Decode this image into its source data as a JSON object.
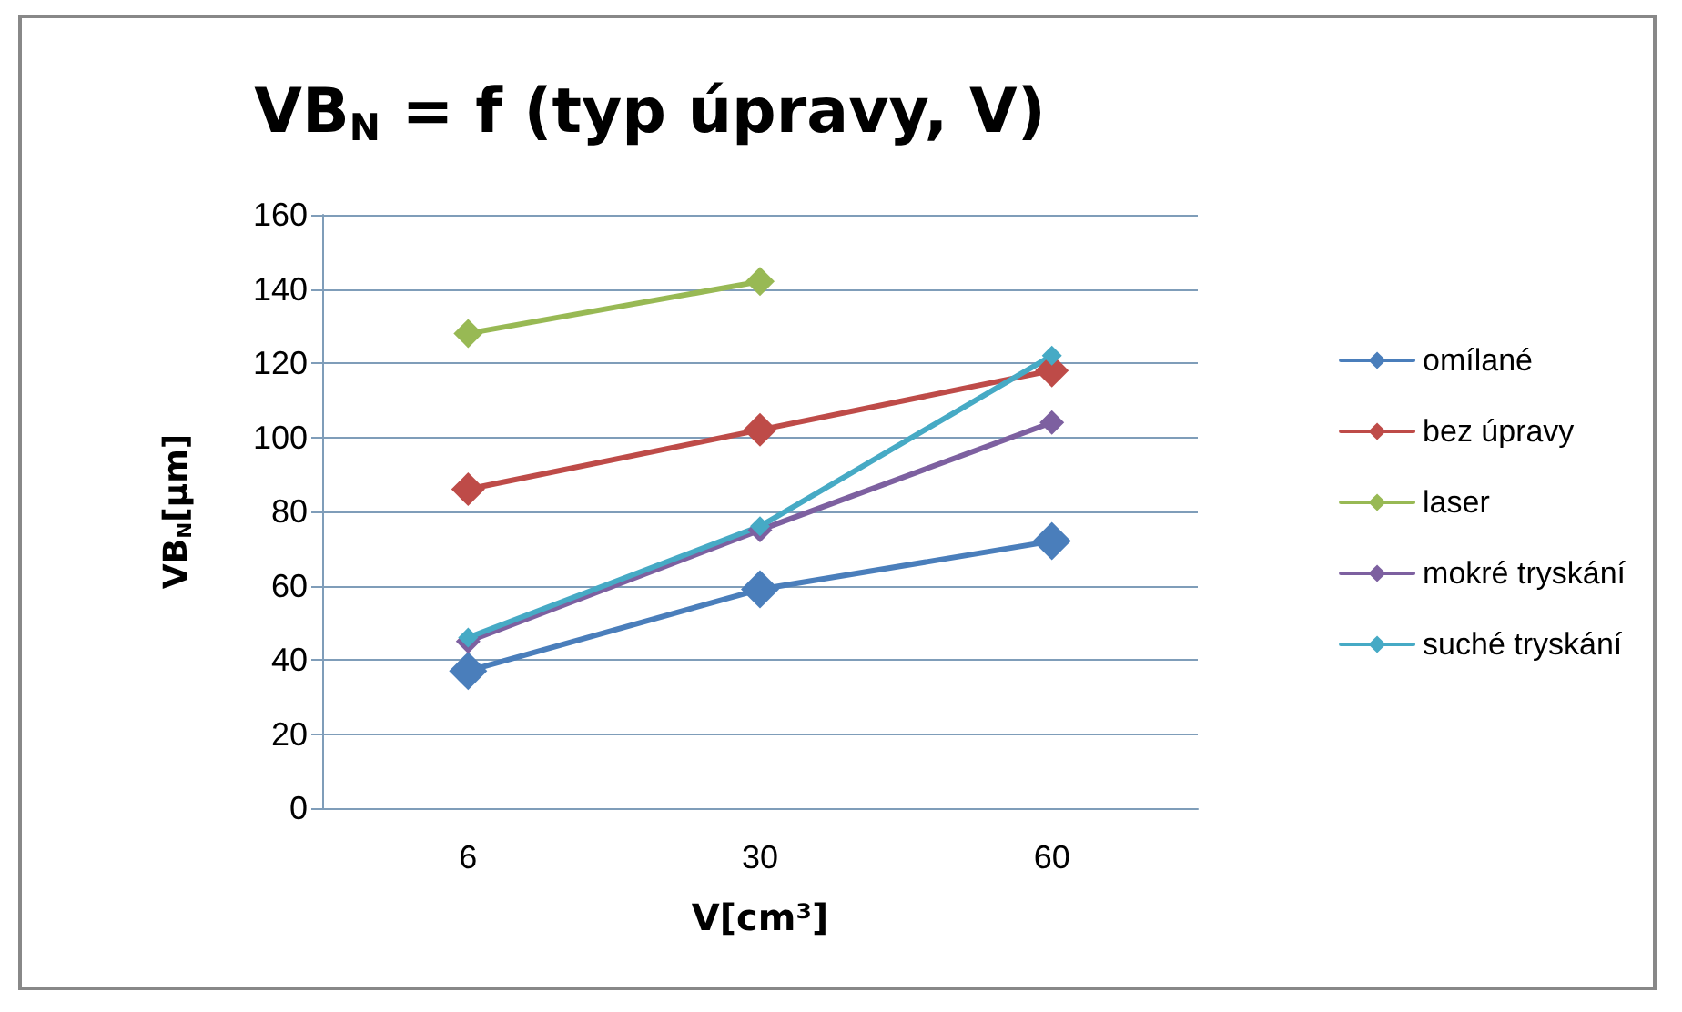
{
  "chart_data": {
    "type": "line",
    "title": "VB$_{N}$ = f (typ úpravy, V)",
    "xlabel": "V[cm³]",
    "ylabel": "VB$_{N}$[µm]",
    "categories": [
      "6",
      "30",
      "60"
    ],
    "series": [
      {
        "name": "omílané",
        "color": "#4a7ebb",
        "values": [
          37,
          59,
          72
        ]
      },
      {
        "name": "bez úpravy",
        "color": "#be4b48",
        "values": [
          86,
          102,
          118
        ]
      },
      {
        "name": "laser",
        "color": "#98b954",
        "values": [
          128,
          142,
          null
        ]
      },
      {
        "name": "mokré tryskání",
        "color": "#7d60a0",
        "values": [
          45,
          75,
          104
        ]
      },
      {
        "name": "suché tryskání",
        "color": "#46aac5",
        "values": [
          46,
          76,
          122
        ]
      }
    ],
    "ylim": [
      0,
      160
    ],
    "yticks": [
      0,
      20,
      40,
      60,
      80,
      100,
      120,
      140,
      160
    ],
    "grid": "y",
    "legend": "right",
    "marker": "diamond",
    "line_style": "solid"
  }
}
